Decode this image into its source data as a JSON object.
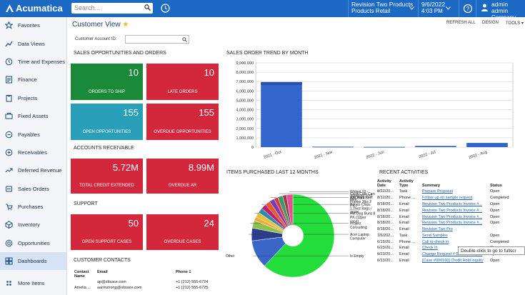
{
  "header": {
    "app_name": "Acumatica",
    "search_placeholder": "Search...",
    "tenant": "Revision Two Products",
    "branch": "Products Retail",
    "date": "9/6/2022",
    "time": "4:03 PM",
    "user": "admin admin",
    "company": "Company"
  },
  "sidebar": {
    "items": [
      {
        "label": "Favorites",
        "icon": "star-icon"
      },
      {
        "label": "Data Views",
        "icon": "data-views-icon"
      },
      {
        "label": "Time and Expenses",
        "icon": "clock-icon"
      },
      {
        "label": "Finance",
        "icon": "finance-icon"
      },
      {
        "label": "Projects",
        "icon": "projects-icon"
      },
      {
        "label": "Fixed Assets",
        "icon": "fixed-assets-icon"
      },
      {
        "label": "Payables",
        "icon": "payables-icon"
      },
      {
        "label": "Receivables",
        "icon": "receivables-icon"
      },
      {
        "label": "Deferred Revenue",
        "icon": "deferred-revenue-icon"
      },
      {
        "label": "Sales Orders",
        "icon": "sales-orders-icon"
      },
      {
        "label": "Purchases",
        "icon": "purchases-icon"
      },
      {
        "label": "Inventory",
        "icon": "inventory-icon"
      },
      {
        "label": "Opportunities",
        "icon": "opportunities-icon"
      },
      {
        "label": "Dashboards",
        "icon": "dashboards-icon"
      },
      {
        "label": "More Items",
        "icon": "more-items-icon"
      }
    ]
  },
  "page": {
    "title": "Customer View",
    "toolbar": {
      "refresh": "REFRESH ALL",
      "design": "DESIGN",
      "tools": "TOOLS"
    },
    "customer_label": "Customer Account ID:",
    "customer_value": ""
  },
  "sections": {
    "sales": "SALES OPPORTUNITIES AND ORDERS",
    "ar": "ACCOUNTS RECEIVABLE",
    "support": "SUPPORT",
    "contacts": "CUSTOMER CONTACTS",
    "trend": "SALES ORDER TREND BY MONTH",
    "items": "ITEMS PURCHASED LAST 12 MONTHS",
    "activities": "RECENT ACTIVITIES"
  },
  "tiles": {
    "orders_to_ship": {
      "value": "10",
      "label": "ORDERS TO SHIP",
      "color": "#1a8a3a"
    },
    "late_orders": {
      "value": "10",
      "label": "LATE ORDERS",
      "color": "#d3273c"
    },
    "open_opps": {
      "value": "155",
      "label": "OPEN OPPORTUNITIES",
      "color": "#2a9fb9"
    },
    "overdue_opps": {
      "value": "155",
      "label": "OVERDUE OPPORTUNITIES",
      "color": "#d3273c"
    },
    "credit": {
      "value": "5.72M",
      "label": "TOTAL CREDIT EXTENDED",
      "color": "#d3273c"
    },
    "overdue_ar": {
      "value": "8.99M",
      "label": "OVERDUE AR",
      "color": "#d3273c"
    },
    "support_open": {
      "value": "50",
      "label": "OPEN SUPPORT CASES",
      "color": "#d3273c"
    },
    "support_overdue": {
      "value": "24",
      "label": "OVERDUE CASES",
      "color": "#d3273c"
    }
  },
  "contacts": {
    "columns": [
      "Contact Name",
      "Email",
      "Phone 1"
    ],
    "rows": [
      [
        "",
        "ap@sltsace.com",
        "+1 (212) 555-6724"
      ],
      [
        "Amelia ...",
        "aarmstrong@sltsace.com",
        "+1 (212) 555-6725"
      ]
    ]
  },
  "activities": {
    "columns": [
      "Activity Date",
      "Activity Type",
      "Summary",
      "Status"
    ],
    "rows": [
      [
        "8/22/20...",
        "Task",
        "Prepare Proposal",
        "Open"
      ],
      [
        "8/12/20...",
        "Phone ...",
        "Follow up on sample request",
        "Completed"
      ],
      [
        "8/18/20...",
        "Email",
        "Revision Two Products Invoice #...",
        "Open"
      ],
      [
        "8/18/20...",
        "Email",
        "Revision Two Products Invoice #...",
        "Open"
      ],
      [
        "8/18/20...",
        "Email",
        "Revision Two Products Invoice #...",
        "Open"
      ],
      [
        "8/18/20...",
        "Email",
        "Revision Two Products Invoice #...",
        "Open"
      ],
      [
        "8/18/20...",
        "Email",
        "Revision Two Pro",
        ""
      ],
      [
        "7/6/202...",
        "Task",
        "Send Samples",
        "Open"
      ],
      [
        "6/15/20...",
        "Phone ...",
        "Call to check in",
        "Completed"
      ],
      [
        "6/23/20...",
        "Email",
        "Check In",
        "Open"
      ],
      [
        "6/23/20...",
        "Email",
        "Change Request # 000001 for pr...",
        "Open"
      ],
      [
        "6/13/20...",
        "Email",
        "[Case #000160] Credit Hold inquiry",
        "Open"
      ]
    ]
  },
  "tooltip": "Double-click to go to fullscr",
  "chart_data": [
    {
      "type": "bar",
      "title": "SALES ORDER TREND BY MONTH",
      "categories": [
        "2021 - Oct",
        "2021 - Nov",
        "2022 - Jun",
        "2022 - Jul",
        "2022 - Aug"
      ],
      "values": [
        6950000,
        50000,
        30000,
        130000,
        450000
      ],
      "ylim": [
        0,
        9000000
      ],
      "ytick_labels": [
        "0",
        "1,000,000",
        "2,000,000",
        "3,000,000",
        "4,000,000",
        "5,000,000",
        "6,000,000",
        "7,000,000",
        "8,000,000",
        "9,000,000"
      ],
      "bar_color": "#3366cc"
    },
    {
      "type": "pie",
      "title": "ITEMS PURCHASED LAST 12 MONTHS",
      "hole": true,
      "slices": [
        {
          "label": "Other",
          "value": 62,
          "color": "#22dd3a"
        },
        {
          "label": "Is Empty",
          "value": 11,
          "color": "#3a66c8"
        },
        {
          "label": "Acer Laptop Computer",
          "value": 5,
          "color": "#2b3f8e"
        },
        {
          "label": "Project Consulting",
          "value": 3,
          "color": "#8bc34a"
        },
        {
          "label": "",
          "value": 1.5,
          "color": "#f4a63a"
        },
        {
          "label": "Hot Dog Buns 8 PK (12per case)",
          "value": 2,
          "color": "#e6c23a"
        },
        {
          "label": "",
          "value": 2,
          "color": "#2a8ab0"
        },
        {
          "label": "Potato Chips 1.25oz Bags / 36PK",
          "value": 2,
          "color": "#c01e6e"
        },
        {
          "label": "",
          "value": 2,
          "color": "#e85a2e"
        },
        {
          "label": "Ball Park Beef Franks 3lbs 2 PK",
          "value": 2,
          "color": "#7a3bb0"
        },
        {
          "label": "",
          "value": 1.5,
          "color": "#d63a3a"
        },
        {
          "label": "Coca-Cola Cans 12 Count",
          "value": 2,
          "color": "#3a9a6a"
        },
        {
          "label": "",
          "value": 1.5,
          "color": "#a03a4a"
        },
        {
          "label": "Widget 03 - Standard cost item",
          "value": 2.5,
          "color": "#e25090"
        }
      ]
    }
  ]
}
